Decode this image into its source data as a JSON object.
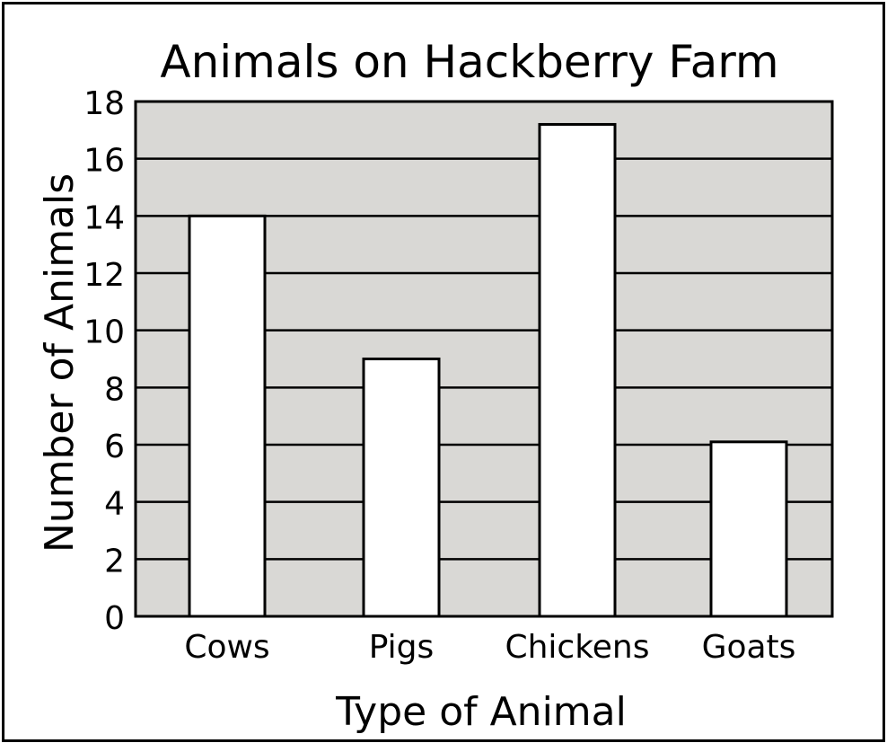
{
  "chart_data": {
    "type": "bar",
    "title": "Animals on Hackberry Farm",
    "xlabel": "Type of Animal",
    "ylabel": "Number of Animals",
    "categories": [
      "Cows",
      "Pigs",
      "Chickens",
      "Goats"
    ],
    "values": [
      14,
      9,
      17.2,
      6.1
    ],
    "ylim": [
      0,
      18
    ],
    "yticks": [
      "0",
      "2",
      "4",
      "6",
      "8",
      "10",
      "12",
      "14",
      "16",
      "18"
    ],
    "grid": true
  },
  "colors": {
    "plot_background": "#d9d8d5",
    "bar_fill": "#ffffff",
    "line": "#000000",
    "text": "#000000"
  }
}
